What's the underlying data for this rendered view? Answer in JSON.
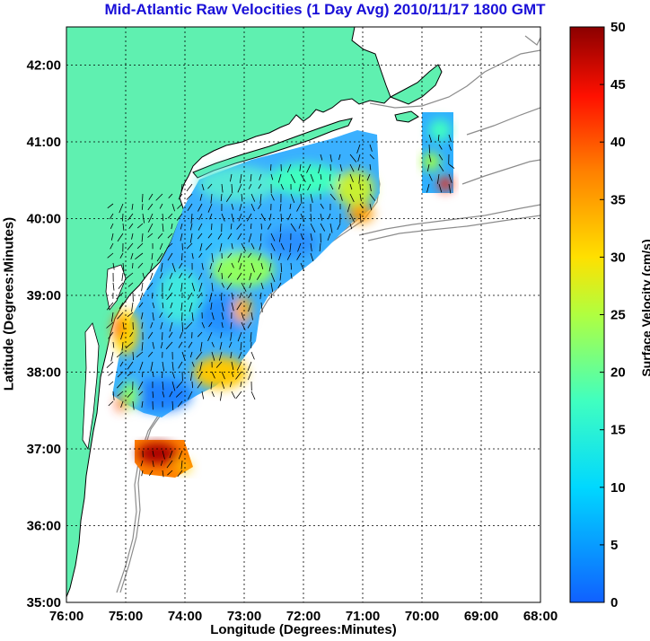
{
  "title": "Mid-Atlantic Raw Velocities (1 Day Avg) 2010/11/17 1800 GMT",
  "xlabel": "Longitude (Degrees:Minutes)",
  "ylabel": "Latitude (Degrees:Minutes)",
  "colorbar_label": "Surface Velocity (cm/s)",
  "x_ticks": [
    "76:00",
    "75:00",
    "74:00",
    "73:00",
    "72:00",
    "71:00",
    "70:00",
    "69:00",
    "68:00"
  ],
  "y_ticks": [
    "35:00",
    "36:00",
    "37:00",
    "38:00",
    "39:00",
    "40:00",
    "41:00",
    "42:00"
  ],
  "colorbar_ticks": [
    "0",
    "5",
    "10",
    "15",
    "20",
    "25",
    "30",
    "35",
    "40",
    "45",
    "50"
  ],
  "colors": {
    "title": "#1a10d8",
    "land": "#5ff0b0",
    "coastline": "#000000",
    "bathymetry": "#8c8c8c",
    "arrows": "#000000",
    "grid": "#000000"
  },
  "chart_data": {
    "type": "heatmap",
    "title": "Mid-Atlantic Raw Velocities (1 Day Avg) 2010/11/17 1800 GMT",
    "xlabel": "Longitude (Degrees:Minutes)",
    "ylabel": "Latitude (Degrees:Minutes)",
    "xlim": [
      -76,
      -68
    ],
    "ylim": [
      35,
      42.5
    ],
    "grid": true,
    "colorbar": {
      "label": "Surface Velocity (cm/s)",
      "range": [
        0,
        50
      ],
      "colormap": "jet"
    }
  }
}
